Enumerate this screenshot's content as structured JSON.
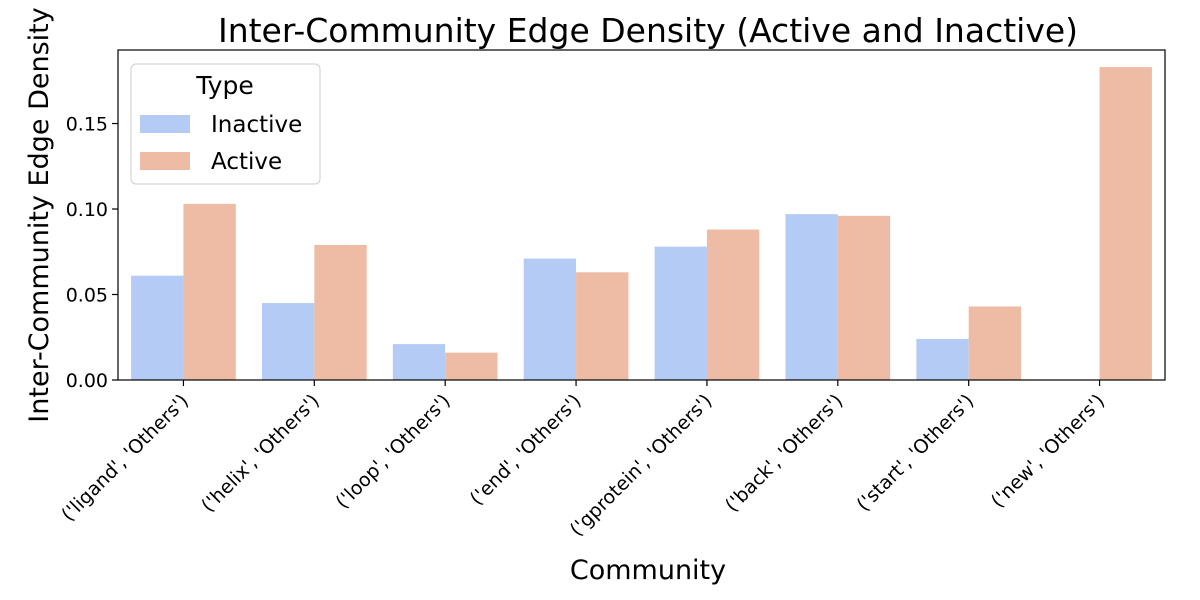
{
  "chart_data": {
    "type": "bar",
    "title": "Inter-Community Edge Density (Active and Inactive)",
    "xlabel": "Community",
    "ylabel": "Inter-Community Edge Density",
    "categories": [
      "('ligand', 'Others')",
      "('helix', 'Others')",
      "('loop', 'Others')",
      "('end', 'Others')",
      "('gprotein', 'Others')",
      "('back', 'Others')",
      "('start', 'Others')",
      "('new', 'Others')"
    ],
    "series": [
      {
        "name": "Inactive",
        "color": "#b4cbf5",
        "values": [
          0.061,
          0.045,
          0.021,
          0.071,
          0.078,
          0.097,
          0.024,
          0.0
        ]
      },
      {
        "name": "Active",
        "color": "#eebca4",
        "values": [
          0.103,
          0.079,
          0.016,
          0.063,
          0.088,
          0.096,
          0.043,
          0.183
        ]
      }
    ],
    "ylim": [
      0,
      0.193
    ],
    "yticks": [
      0.0,
      0.05,
      0.1,
      0.15
    ],
    "ytick_labels": [
      "0.00",
      "0.05",
      "0.10",
      "0.15"
    ],
    "legend": {
      "title": "Type",
      "placement": "top-left"
    },
    "grid": false
  }
}
